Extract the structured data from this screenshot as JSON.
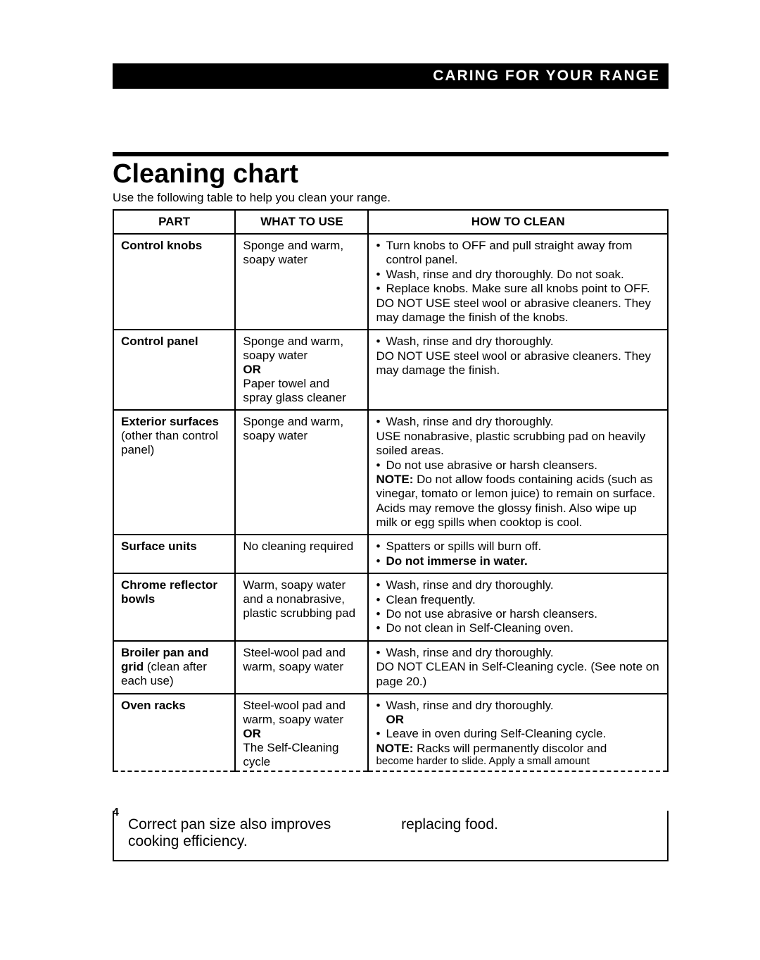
{
  "header": {
    "label": "CARING FOR YOUR RANGE"
  },
  "section": {
    "title": "Cleaning chart",
    "intro": "Use the following table to help you clean your range."
  },
  "table": {
    "headers": {
      "part": "PART",
      "use": "WHAT TO USE",
      "how": "HOW TO CLEAN"
    },
    "rows": {
      "r1": {
        "part_bold": "Control knobs",
        "use": "Sponge and warm, soapy water",
        "how_li1": "Turn knobs to OFF and pull straight away from control panel.",
        "how_li2": "Wash, rinse and dry thoroughly. Do not soak.",
        "how_li3": "Replace knobs. Make sure all knobs point to OFF.",
        "how_note": "DO NOT USE steel wool or abrasive cleaners. They may damage the finish of the knobs."
      },
      "r2": {
        "part_bold": "Control panel",
        "use_line1": "Sponge and warm, soapy water",
        "use_or": "OR",
        "use_line2": "Paper towel and spray glass cleaner",
        "how_li1": "Wash, rinse and dry thoroughly.",
        "how_note": "DO NOT USE steel wool or abrasive cleaners. They may damage the finish."
      },
      "r3": {
        "part_bold": "Exterior surfaces",
        "part_rest": " (other than control panel)",
        "use": "Sponge and warm, soapy water",
        "how_li1": "Wash, rinse and dry thoroughly.",
        "how_sub1": "USE nonabrasive, plastic scrubbing pad on heavily soiled areas.",
        "how_li2": "Do not use abrasive or harsh cleansers.",
        "how_note_bold": "NOTE:",
        "how_note_rest": " Do not allow foods containing acids (such as vinegar, tomato or lemon juice) to remain on surface. Acids may remove the glossy finish. Also wipe up milk or egg spills when cooktop is cool."
      },
      "r4": {
        "part_bold": "Surface units",
        "use": "No cleaning required",
        "how_li1": "Spatters or spills will burn off.",
        "how_li2_bold": "Do not immerse in water."
      },
      "r5": {
        "part_bold": "Chrome reflector bowls",
        "use": "Warm, soapy water and a nonabrasive, plastic scrubbing pad",
        "how_li1": "Wash, rinse and dry thoroughly.",
        "how_li2": "Clean frequently.",
        "how_li3": "Do not use abrasive or harsh cleansers.",
        "how_li4": "Do not clean in Self-Cleaning oven."
      },
      "r6": {
        "part_bold": "Broiler pan and grid",
        "part_rest": " (clean after each use)",
        "use": "Steel-wool pad and warm, soapy water",
        "how_li1": "Wash, rinse and dry thoroughly.",
        "how_note": "DO NOT CLEAN in Self-Cleaning cycle. (See note on page 20.)"
      },
      "r7": {
        "part_bold": "Oven racks",
        "use_line1": "Steel-wool pad and warm, soapy water",
        "use_or": "OR",
        "use_line2": "The Self-Cleaning cycle",
        "how_li1": "Wash, rinse and dry thoroughly.",
        "how_or": "OR",
        "how_li2": "Leave in oven during Self-Cleaning cycle.",
        "how_note_bold": "NOTE:",
        "how_note_rest": " Racks will permanently discolor and",
        "how_cutoff": "become harder to slide. Apply a small amount"
      }
    }
  },
  "bottom_fragments": {
    "left": "Correct pan size also improves cooking efficiency.",
    "right": "replacing food."
  },
  "page_number": "4",
  "colors": {
    "black": "#000000",
    "white": "#ffffff",
    "background": "#ffffff"
  },
  "fonts": {
    "family": "Arial, Helvetica, sans-serif"
  }
}
